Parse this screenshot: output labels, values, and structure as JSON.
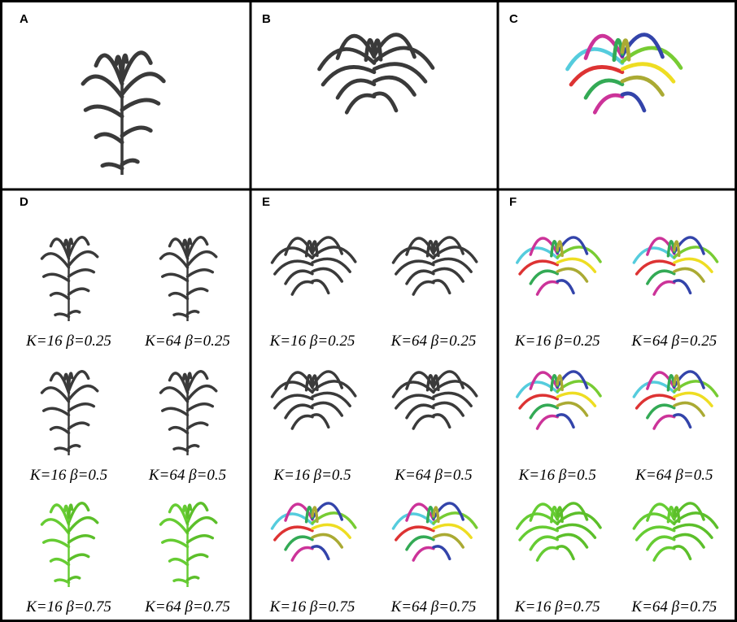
{
  "panels": [
    {
      "label": "A"
    },
    {
      "label": "B"
    },
    {
      "label": "C"
    },
    {
      "label": "D",
      "captions": [
        "K=16  β=0.25",
        "K=64  β=0.25",
        "K=16  β=0.5",
        "K=64  β=0.5",
        "K=16  β=0.75",
        "K=64  β=0.75"
      ]
    },
    {
      "label": "E",
      "captions": [
        "K=16  β=0.25",
        "K=64  β=0.25",
        "K=16  β=0.5",
        "K=64  β=0.5",
        "K=16  β=0.75",
        "K=64  β=0.75"
      ]
    },
    {
      "label": "F",
      "captions": [
        "K=16  β=0.25",
        "K=64  β=0.25",
        "K=16  β=0.5",
        "K=64  β=0.5",
        "K=16  β=0.75",
        "K=64  β=0.75"
      ]
    }
  ]
}
